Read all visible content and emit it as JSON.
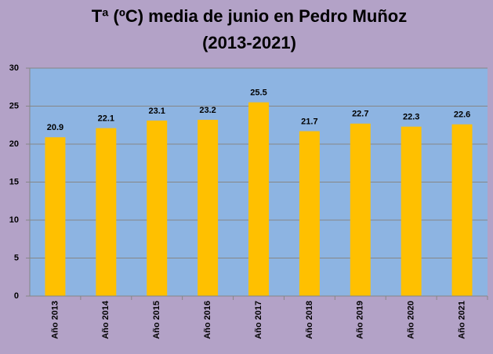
{
  "chart_data": {
    "type": "bar",
    "title": "Tª (ºC) media de junio en Pedro Muñoz",
    "subtitle": "(2013-2021)",
    "categories": [
      "Año 2013",
      "Año 2014",
      "Año 2015",
      "Año 2016",
      "Año 2017",
      "Año 2018",
      "Año 2019",
      "Año 2020",
      "Año 2021"
    ],
    "values": [
      20.9,
      22.1,
      23.1,
      23.2,
      25.5,
      21.7,
      22.7,
      22.3,
      22.6
    ],
    "color": "#ffc000",
    "ylim": [
      0,
      30
    ],
    "yticks": [
      0,
      5,
      10,
      15,
      20,
      25,
      30
    ],
    "grid": true
  }
}
